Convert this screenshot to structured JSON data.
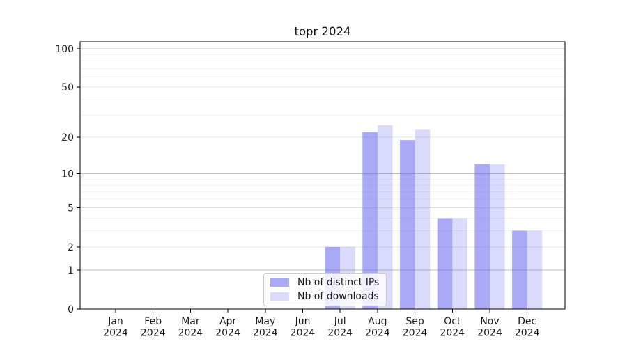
{
  "chart_data": {
    "type": "bar",
    "title": "topr 2024",
    "categories": [
      "Jan",
      "Feb",
      "Mar",
      "Apr",
      "May",
      "Jun",
      "Jul",
      "Aug",
      "Sep",
      "Oct",
      "Nov",
      "Dec"
    ],
    "category_year": "2024",
    "series": [
      {
        "name": "Nb of distinct IPs",
        "values": [
          0,
          0,
          0,
          0,
          0,
          0,
          2,
          22,
          19,
          4,
          12,
          3
        ],
        "color": "#5353eb",
        "alpha": 0.5,
        "legend_swatch": "#a9a9f5"
      },
      {
        "name": "Nb of downloads",
        "values": [
          0,
          0,
          0,
          0,
          0,
          0,
          2,
          25,
          23,
          4,
          12,
          3
        ],
        "color": "#5353eb",
        "alpha": 0.215,
        "legend_swatch": "#dadaf9"
      }
    ],
    "xlabel": "",
    "ylabel": "",
    "yscale": "log1p",
    "ylim": [
      0,
      113
    ],
    "y_major_ticks": [
      0,
      1,
      2,
      5,
      10,
      20,
      50,
      100
    ],
    "y_minor_ticks": [
      3,
      4,
      6,
      7,
      8,
      9,
      30,
      40,
      60,
      70,
      80,
      90
    ],
    "y_power_ticks": [
      1,
      10,
      100
    ],
    "grid": "horizontal-only",
    "legend_position": "lower-center-inside"
  },
  "colors": {
    "background": "#ffffff",
    "axis": "#000000",
    "text": "#1a1a1a",
    "grid_power": "#c2c2c2",
    "grid_major": "#e3e3e3",
    "grid_minor": "#f2f2f2",
    "legend_border": "#cccccc"
  }
}
